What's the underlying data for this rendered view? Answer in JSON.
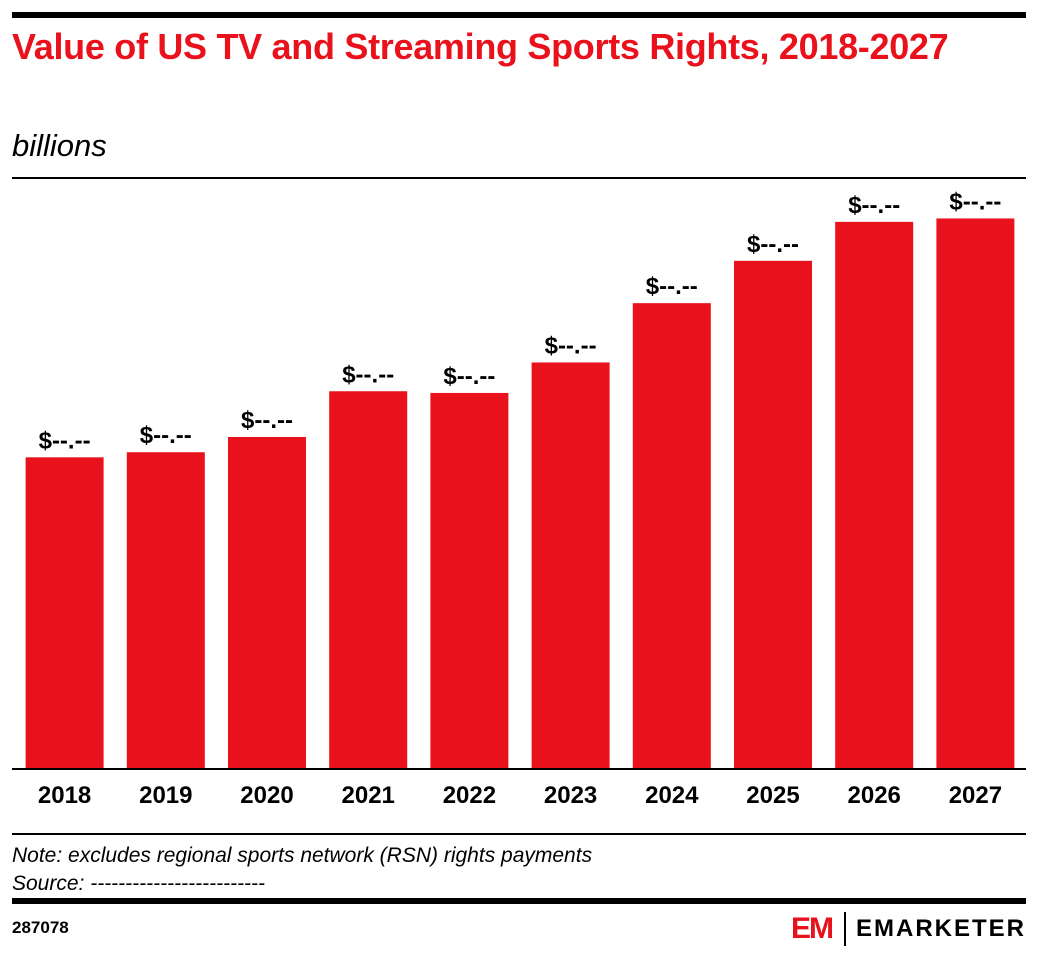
{
  "header": {
    "title": "Value of US TV and Streaming Sports Rights, 2018-2027",
    "subtitle": "billions"
  },
  "footer": {
    "note": "Note: excludes regional sports network (RSN) rights payments",
    "source": "Source: -------------------------",
    "chart_id": "287078",
    "brand_mark": "EM",
    "brand_name": "EMARKETER"
  },
  "colors": {
    "bar": "#e8111c",
    "title": "#e8111c",
    "text": "#000000"
  },
  "chart_data": {
    "type": "bar",
    "title": "Value of US TV and Streaming Sports Rights, 2018-2027",
    "subtitle": "billions",
    "categories": [
      "2018",
      "2019",
      "2020",
      "2021",
      "2022",
      "2023",
      "2024",
      "2025",
      "2026",
      "2027"
    ],
    "values": [
      18.4,
      18.7,
      19.6,
      22.3,
      22.2,
      24.0,
      27.5,
      30.0,
      32.3,
      32.5
    ],
    "data_labels": [
      "$--.--",
      "$--.--",
      "$--.--",
      "$--.--",
      "$--.--",
      "$--.--",
      "$--.--",
      "$--.--",
      "$--.--",
      "$--.--"
    ],
    "ylim": [
      0,
      33
    ],
    "grid": false,
    "legend": "none"
  }
}
